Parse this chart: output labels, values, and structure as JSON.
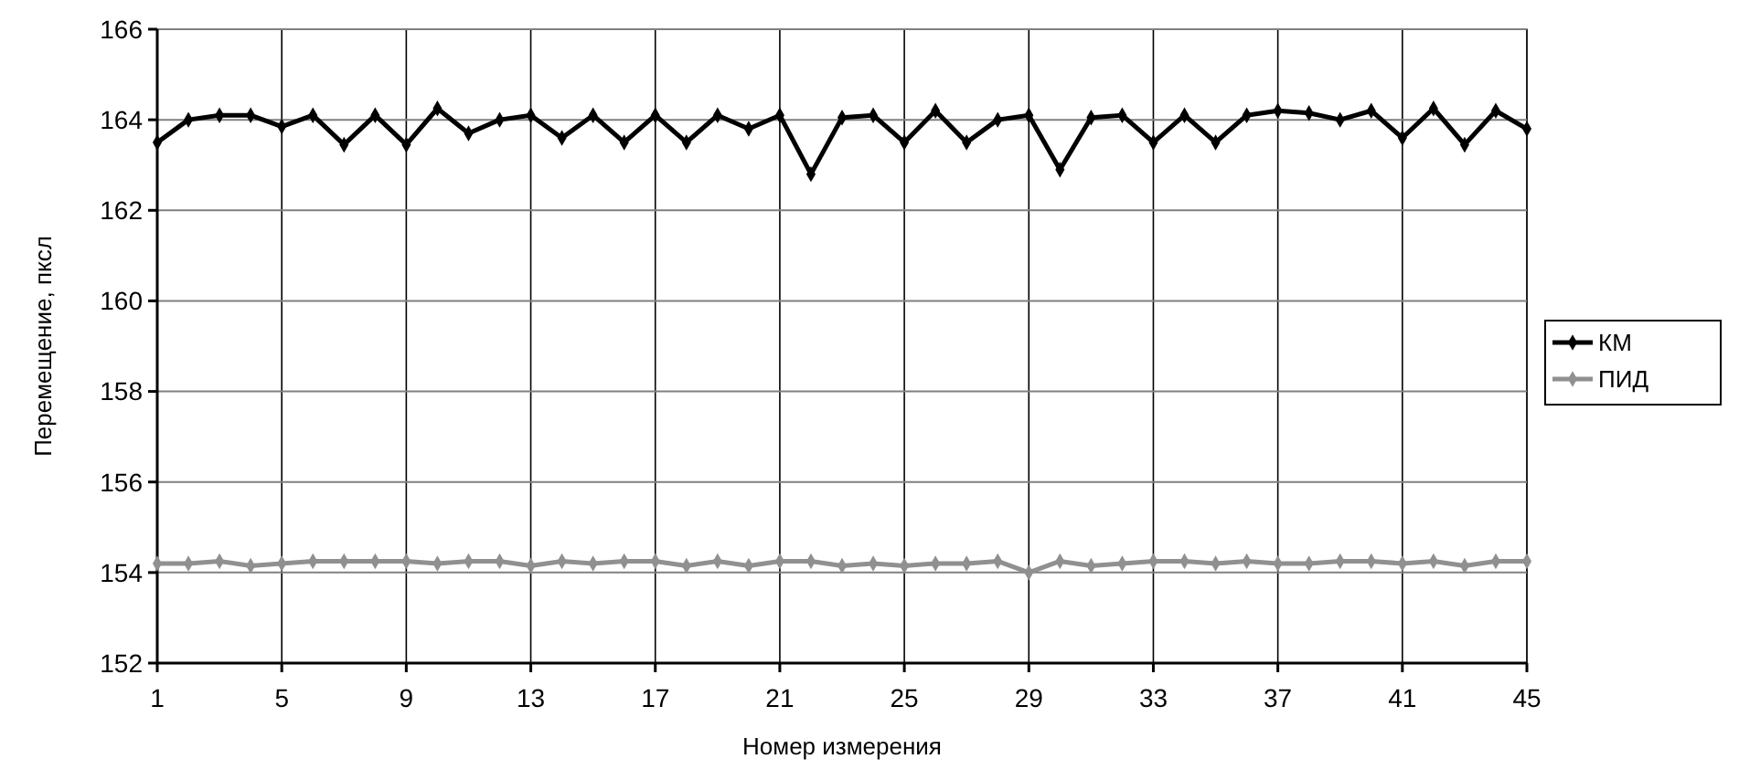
{
  "chart_data": {
    "type": "line",
    "xlabel": "Номер измерения",
    "ylabel": "Перемещение, пксл",
    "x": [
      1,
      2,
      3,
      4,
      5,
      6,
      7,
      8,
      9,
      10,
      11,
      12,
      13,
      14,
      15,
      16,
      17,
      18,
      19,
      20,
      21,
      22,
      23,
      24,
      25,
      26,
      27,
      28,
      29,
      30,
      31,
      32,
      33,
      34,
      35,
      36,
      37,
      38,
      39,
      40,
      41,
      42,
      43,
      44,
      45
    ],
    "series": [
      {
        "name": "КМ",
        "color": "#000000",
        "values": [
          163.5,
          164.0,
          164.1,
          164.1,
          163.85,
          164.1,
          163.45,
          164.1,
          163.45,
          164.25,
          163.7,
          164.0,
          164.1,
          163.6,
          164.1,
          163.5,
          164.1,
          163.5,
          164.1,
          163.8,
          164.1,
          162.8,
          164.05,
          164.1,
          163.5,
          164.2,
          163.5,
          164.0,
          164.1,
          162.9,
          164.05,
          164.1,
          163.5,
          164.1,
          163.5,
          164.1,
          164.2,
          164.15,
          164.0,
          164.2,
          163.6,
          164.25,
          163.45,
          164.2,
          163.8
        ]
      },
      {
        "name": "ПИД",
        "color": "#909090",
        "values": [
          154.2,
          154.2,
          154.25,
          154.15,
          154.2,
          154.25,
          154.25,
          154.25,
          154.25,
          154.2,
          154.25,
          154.25,
          154.15,
          154.25,
          154.2,
          154.25,
          154.25,
          154.15,
          154.25,
          154.15,
          154.25,
          154.25,
          154.15,
          154.2,
          154.15,
          154.2,
          154.2,
          154.25,
          154.0,
          154.25,
          154.15,
          154.2,
          154.25,
          154.25,
          154.2,
          154.25,
          154.2,
          154.2,
          154.25,
          154.25,
          154.2,
          154.25,
          154.15,
          154.25,
          154.25
        ]
      }
    ],
    "xlim": [
      1,
      45
    ],
    "xticks": [
      1,
      5,
      9,
      13,
      17,
      21,
      25,
      29,
      33,
      37,
      41,
      45
    ],
    "ylim": [
      152,
      166
    ],
    "yticks": [
      152,
      154,
      156,
      158,
      160,
      162,
      164,
      166
    ],
    "grid": true,
    "legend": "right",
    "marker": "diamond",
    "line_style": "solid"
  }
}
